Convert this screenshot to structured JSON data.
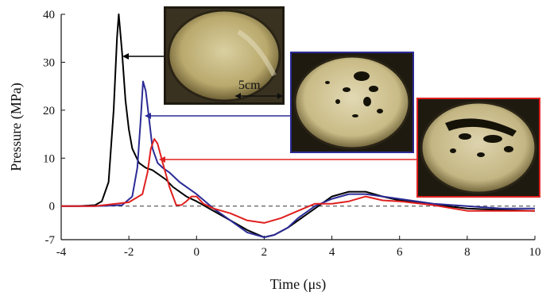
{
  "chart_data": {
    "type": "line",
    "title": "",
    "xlabel": "Time (μs)",
    "ylabel": "Pressure (MPa)",
    "xlim": [
      -4,
      10
    ],
    "ylim": [
      -7,
      40
    ],
    "xticks": [
      -4,
      -2,
      0,
      2,
      4,
      6,
      8,
      10
    ],
    "yticks": [
      -7,
      0,
      10,
      20,
      30,
      40
    ],
    "xtick_labels": [
      "-4",
      "-2",
      "0",
      "2",
      "4",
      "6",
      "8",
      "10"
    ],
    "ytick_labels": [
      "-7",
      "0",
      "10",
      "20",
      "30",
      "40"
    ],
    "grid": false,
    "baseline": 0,
    "series": [
      {
        "color": "#000000",
        "x": [
          -4,
          -3.5,
          -3,
          -2.8,
          -2.6,
          -2.45,
          -2.35,
          -2.3,
          -2.2,
          -2.1,
          -2.0,
          -1.9,
          -1.7,
          -1.5,
          -1.3,
          -1.1,
          -0.9,
          -0.7,
          -0.5,
          -0.3,
          0,
          0.5,
          1.0,
          1.5,
          2.0,
          2.3,
          2.7,
          3.0,
          3.5,
          4.0,
          4.5,
          5.0,
          5.5,
          6.0,
          7.0,
          8.0,
          9.0,
          10.0
        ],
        "y": [
          0,
          0,
          0.2,
          1,
          5,
          20,
          35,
          40,
          32,
          22,
          16,
          12,
          9,
          8,
          7.5,
          6.5,
          5.5,
          4,
          3,
          2,
          1,
          -1,
          -3,
          -5,
          -6.5,
          -6,
          -4.5,
          -3,
          -0.5,
          2,
          3,
          3,
          2,
          1.2,
          0.3,
          -0.5,
          -0.8,
          -1
        ]
      },
      {
        "color": "#2b2b96",
        "x": [
          -4,
          -3,
          -2.2,
          -1.9,
          -1.75,
          -1.65,
          -1.58,
          -1.5,
          -1.4,
          -1.3,
          -1.15,
          -1.0,
          -0.8,
          -0.5,
          -0.2,
          0,
          0.5,
          1.0,
          1.5,
          2.0,
          2.3,
          2.7,
          3.0,
          3.5,
          4.0,
          4.5,
          5.0,
          5.5,
          6.0,
          7.0,
          8.0,
          9.0,
          10.0
        ],
        "y": [
          0,
          0,
          0.2,
          2,
          8,
          18,
          26,
          24,
          18,
          12,
          9,
          8,
          7,
          5,
          3.5,
          2.5,
          -0.5,
          -3,
          -5.5,
          -6.5,
          -6,
          -4.5,
          -2.5,
          0,
          1.5,
          2.5,
          2.5,
          2,
          1.5,
          0.5,
          0,
          -0.5,
          -0.5
        ]
      },
      {
        "color": "#e02020",
        "x": [
          -4,
          -3,
          -2,
          -1.6,
          -1.45,
          -1.35,
          -1.25,
          -1.15,
          -1.0,
          -0.8,
          -0.6,
          -0.45,
          -0.3,
          -0.15,
          0,
          0.2,
          0.5,
          1.0,
          1.5,
          2.0,
          2.5,
          3.0,
          3.5,
          4.0,
          4.5,
          5.0,
          5.5,
          6.0,
          7.0,
          8.0,
          9.0,
          10.0
        ],
        "y": [
          0,
          0,
          0.8,
          2.5,
          7,
          12,
          14,
          13,
          9,
          4,
          0.2,
          0.2,
          1,
          2,
          2,
          0.5,
          -0.5,
          -1.5,
          -3,
          -3.5,
          -2.5,
          -1,
          0.5,
          0.5,
          1,
          2,
          1.2,
          1,
          0.2,
          -1,
          -1,
          -1
        ]
      }
    ],
    "annotations": [
      {
        "text": "5cm"
      }
    ]
  }
}
